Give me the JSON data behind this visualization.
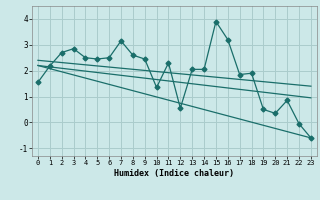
{
  "xlabel": "Humidex (Indice chaleur)",
  "bg_color": "#cce8e8",
  "line_color": "#1a6e6a",
  "grid_color": "#aacccc",
  "xlim": [
    -0.5,
    23.5
  ],
  "ylim": [
    -1.3,
    4.5
  ],
  "xticks": [
    0,
    1,
    2,
    3,
    4,
    5,
    6,
    7,
    8,
    9,
    10,
    11,
    12,
    13,
    14,
    15,
    16,
    17,
    18,
    19,
    20,
    21,
    22,
    23
  ],
  "yticks": [
    -1,
    0,
    1,
    2,
    3,
    4
  ],
  "series1_y": [
    1.55,
    2.18,
    2.7,
    2.85,
    2.5,
    2.45,
    2.5,
    3.15,
    2.6,
    2.45,
    1.35,
    2.3,
    0.55,
    2.05,
    2.05,
    3.9,
    3.2,
    1.85,
    1.9,
    0.5,
    0.35,
    0.85,
    -0.05,
    -0.6
  ],
  "trend1": [
    2.2,
    0.95
  ],
  "trend2": [
    2.2,
    -0.6
  ],
  "trend3": [
    2.4,
    1.4
  ]
}
